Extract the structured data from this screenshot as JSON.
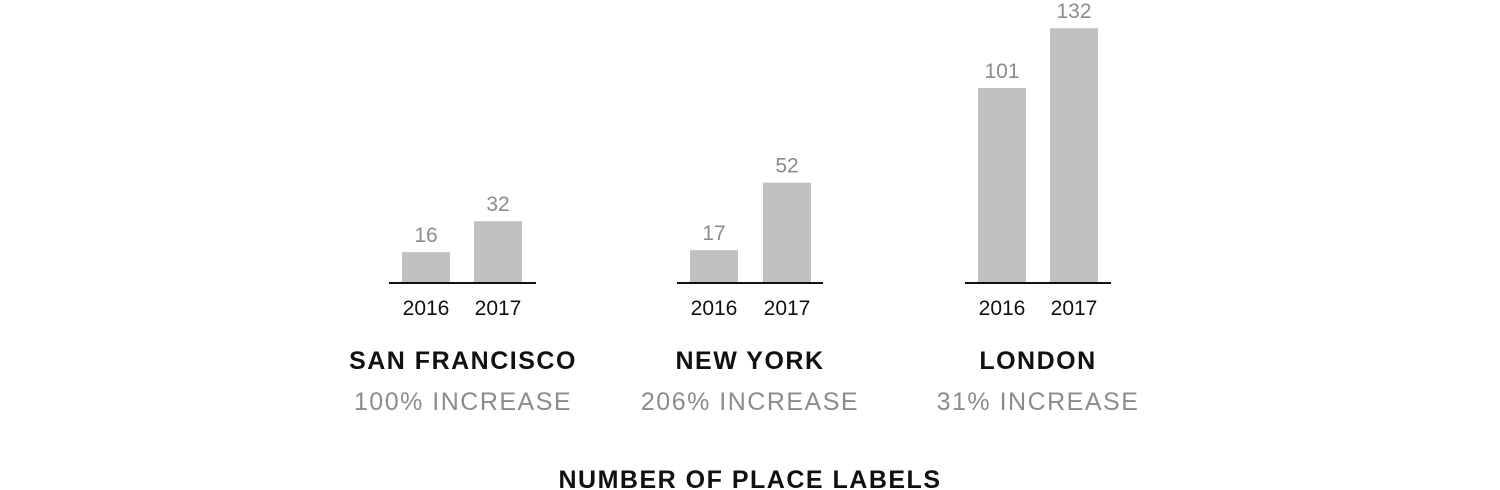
{
  "chart_data": {
    "type": "bar",
    "colors": {
      "bar": "#c0c0c0",
      "baseline": "#111111",
      "value_text": "#8c8c8c",
      "label_text": "#111111"
    },
    "groups": [
      {
        "title": "SAN FRANCISCO",
        "subtitle": "100% INCREASE",
        "categories": [
          "2016",
          "2017"
        ],
        "values": [
          16,
          32
        ]
      },
      {
        "title": "NEW YORK",
        "subtitle": "206% INCREASE",
        "categories": [
          "2016",
          "2017"
        ],
        "values": [
          17,
          52
        ]
      },
      {
        "title": "LONDON",
        "subtitle": "31% INCREASE",
        "categories": [
          "2016",
          "2017"
        ],
        "values": [
          101,
          132
        ]
      }
    ],
    "footer": "NUMBER OF PLACE LABELS",
    "grid": false
  }
}
